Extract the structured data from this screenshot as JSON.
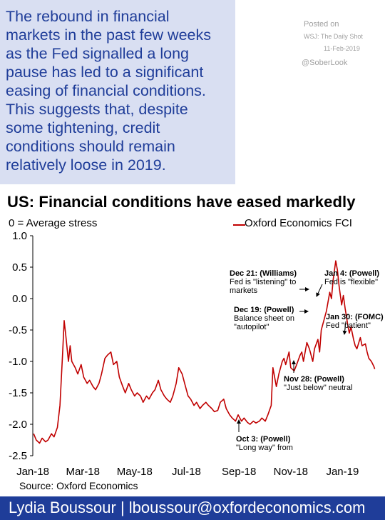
{
  "callout": {
    "lines": [
      "The rebound in financial",
      "markets in the past few weeks",
      "as the Fed signalled a long",
      "pause has led to a significant",
      "easing of financial conditions.",
      "This suggests that, despite",
      "some tightening, credit",
      "conditions should remain",
      "relatively loose in 2019."
    ]
  },
  "meta": {
    "posted": "Posted on",
    "outlet": "WSJ: The Daily Shot",
    "date": "11-Feb-2019",
    "handle": "@SoberLook"
  },
  "source": "Source: Oxford Economics",
  "author": "Lydia Boussour | lboussour@oxfordeconomics.com",
  "colors": {
    "series": "#c00000",
    "callout_bg": "#d9dff2",
    "accent": "#1f3d99"
  },
  "chart_data": {
    "type": "line",
    "title": "US: Financial conditions have eased markedly",
    "subtitle": "0 = Average stress",
    "ylim": [
      -2.5,
      1.0
    ],
    "yticks": [
      1.0,
      0.5,
      0.0,
      -0.5,
      -1.0,
      -1.5,
      -2.0,
      -2.5
    ],
    "ytick_labels": [
      "1.0",
      "0.5",
      "0.0",
      "-0.5",
      "-1.0",
      "-1.5",
      "-2.0",
      "-2.5"
    ],
    "xticks": [
      "Jan-18",
      "Mar-18",
      "May-18",
      "Jul-18",
      "Sep-18",
      "Nov-18",
      "Jan-19"
    ],
    "xtick_dates": [
      "2018-01-01",
      "2018-03-01",
      "2018-05-01",
      "2018-07-01",
      "2018-09-01",
      "2018-11-01",
      "2019-01-01"
    ],
    "xlim": [
      "2018-01-01",
      "2019-02-10"
    ],
    "grid": false,
    "legend": "top-right",
    "series": [
      {
        "name": "Oxford Economics FCI",
        "color": "#c00000",
        "points": [
          [
            "2018-01-02",
            -2.15
          ],
          [
            "2018-01-05",
            -2.25
          ],
          [
            "2018-01-09",
            -2.3
          ],
          [
            "2018-01-12",
            -2.22
          ],
          [
            "2018-01-16",
            -2.28
          ],
          [
            "2018-01-19",
            -2.25
          ],
          [
            "2018-01-23",
            -2.15
          ],
          [
            "2018-01-26",
            -2.2
          ],
          [
            "2018-01-30",
            -2.05
          ],
          [
            "2018-02-02",
            -1.7
          ],
          [
            "2018-02-05",
            -0.9
          ],
          [
            "2018-02-07",
            -0.35
          ],
          [
            "2018-02-09",
            -0.6
          ],
          [
            "2018-02-12",
            -1.0
          ],
          [
            "2018-02-14",
            -0.75
          ],
          [
            "2018-02-16",
            -1.0
          ],
          [
            "2018-02-20",
            -1.1
          ],
          [
            "2018-02-23",
            -1.2
          ],
          [
            "2018-02-27",
            -1.05
          ],
          [
            "2018-03-02",
            -1.25
          ],
          [
            "2018-03-06",
            -1.35
          ],
          [
            "2018-03-09",
            -1.3
          ],
          [
            "2018-03-13",
            -1.4
          ],
          [
            "2018-03-16",
            -1.45
          ],
          [
            "2018-03-20",
            -1.35
          ],
          [
            "2018-03-23",
            -1.2
          ],
          [
            "2018-03-27",
            -0.95
          ],
          [
            "2018-03-30",
            -0.9
          ],
          [
            "2018-04-03",
            -0.85
          ],
          [
            "2018-04-06",
            -1.05
          ],
          [
            "2018-04-10",
            -1.0
          ],
          [
            "2018-04-13",
            -1.25
          ],
          [
            "2018-04-17",
            -1.4
          ],
          [
            "2018-04-20",
            -1.5
          ],
          [
            "2018-04-24",
            -1.35
          ],
          [
            "2018-04-27",
            -1.45
          ],
          [
            "2018-05-01",
            -1.55
          ],
          [
            "2018-05-04",
            -1.5
          ],
          [
            "2018-05-08",
            -1.55
          ],
          [
            "2018-05-11",
            -1.65
          ],
          [
            "2018-05-15",
            -1.55
          ],
          [
            "2018-05-18",
            -1.6
          ],
          [
            "2018-05-22",
            -1.5
          ],
          [
            "2018-05-25",
            -1.45
          ],
          [
            "2018-05-29",
            -1.3
          ],
          [
            "2018-06-01",
            -1.45
          ],
          [
            "2018-06-05",
            -1.55
          ],
          [
            "2018-06-08",
            -1.6
          ],
          [
            "2018-06-12",
            -1.65
          ],
          [
            "2018-06-15",
            -1.55
          ],
          [
            "2018-06-19",
            -1.35
          ],
          [
            "2018-06-22",
            -1.1
          ],
          [
            "2018-06-26",
            -1.2
          ],
          [
            "2018-06-29",
            -1.35
          ],
          [
            "2018-07-03",
            -1.55
          ],
          [
            "2018-07-06",
            -1.6
          ],
          [
            "2018-07-10",
            -1.7
          ],
          [
            "2018-07-13",
            -1.65
          ],
          [
            "2018-07-17",
            -1.75
          ],
          [
            "2018-07-20",
            -1.7
          ],
          [
            "2018-07-24",
            -1.65
          ],
          [
            "2018-07-27",
            -1.7
          ],
          [
            "2018-07-31",
            -1.75
          ],
          [
            "2018-08-03",
            -1.8
          ],
          [
            "2018-08-07",
            -1.78
          ],
          [
            "2018-08-10",
            -1.65
          ],
          [
            "2018-08-14",
            -1.6
          ],
          [
            "2018-08-17",
            -1.75
          ],
          [
            "2018-08-21",
            -1.85
          ],
          [
            "2018-08-24",
            -1.9
          ],
          [
            "2018-08-28",
            -1.95
          ],
          [
            "2018-08-31",
            -1.85
          ],
          [
            "2018-09-04",
            -1.95
          ],
          [
            "2018-09-07",
            -1.9
          ],
          [
            "2018-09-11",
            -1.97
          ],
          [
            "2018-09-14",
            -2.0
          ],
          [
            "2018-09-18",
            -1.95
          ],
          [
            "2018-09-21",
            -1.98
          ],
          [
            "2018-09-25",
            -1.95
          ],
          [
            "2018-09-28",
            -1.9
          ],
          [
            "2018-10-02",
            -1.95
          ],
          [
            "2018-10-05",
            -1.85
          ],
          [
            "2018-10-09",
            -1.7
          ],
          [
            "2018-10-11",
            -1.1
          ],
          [
            "2018-10-15",
            -1.4
          ],
          [
            "2018-10-18",
            -1.2
          ],
          [
            "2018-10-22",
            -1.0
          ],
          [
            "2018-10-24",
            -0.95
          ],
          [
            "2018-10-26",
            -1.05
          ],
          [
            "2018-10-30",
            -0.85
          ],
          [
            "2018-11-01",
            -1.1
          ],
          [
            "2018-11-05",
            -1.15
          ],
          [
            "2018-11-08",
            -1.05
          ],
          [
            "2018-11-12",
            -0.9
          ],
          [
            "2018-11-14",
            -0.85
          ],
          [
            "2018-11-16",
            -1.0
          ],
          [
            "2018-11-20",
            -0.7
          ],
          [
            "2018-11-23",
            -0.8
          ],
          [
            "2018-11-27",
            -1.0
          ],
          [
            "2018-11-29",
            -0.8
          ],
          [
            "2018-12-03",
            -0.65
          ],
          [
            "2018-12-05",
            -0.85
          ],
          [
            "2018-12-07",
            -0.5
          ],
          [
            "2018-12-10",
            -0.35
          ],
          [
            "2018-12-13",
            -0.2
          ],
          [
            "2018-12-17",
            0.1
          ],
          [
            "2018-12-19",
            0.0
          ],
          [
            "2018-12-21",
            0.3
          ],
          [
            "2018-12-24",
            0.6
          ],
          [
            "2018-12-26",
            0.45
          ],
          [
            "2018-12-28",
            0.2
          ],
          [
            "2018-12-31",
            -0.1
          ],
          [
            "2019-01-02",
            0.05
          ],
          [
            "2019-01-04",
            -0.15
          ],
          [
            "2019-01-07",
            -0.4
          ],
          [
            "2019-01-09",
            -0.55
          ],
          [
            "2019-01-11",
            -0.45
          ],
          [
            "2019-01-14",
            -0.65
          ],
          [
            "2019-01-16",
            -0.75
          ],
          [
            "2019-01-18",
            -0.8
          ],
          [
            "2019-01-22",
            -0.62
          ],
          [
            "2019-01-24",
            -0.75
          ],
          [
            "2019-01-28",
            -0.72
          ],
          [
            "2019-01-30",
            -0.85
          ],
          [
            "2019-02-01",
            -0.95
          ],
          [
            "2019-02-04",
            -1.0
          ],
          [
            "2019-02-07",
            -1.08
          ],
          [
            "2019-02-08",
            -1.12
          ]
        ]
      }
    ],
    "annotations": [
      {
        "title": "Dec 21: (Williams)",
        "lines": [
          "Fed is \"listening\" to",
          "markets"
        ],
        "date": "2018-12-21",
        "value": 0.3
      },
      {
        "title": "Jan 4: (Powell)",
        "lines": [
          "Fed is \"flexible\""
        ],
        "date": "2019-01-04",
        "value": -0.15
      },
      {
        "title": "Dec 19: (Powell)",
        "lines": [
          "Balance sheet on",
          "\"autopilot\""
        ],
        "date": "2018-12-19",
        "value": 0.0
      },
      {
        "title": "Jan 30: (FOMC)",
        "lines": [
          "Fed \"patient\""
        ],
        "date": "2019-01-30",
        "value": -0.85
      },
      {
        "title": "Nov 28: (Powell)",
        "lines": [
          "\"Just below\" neutral"
        ],
        "date": "2018-11-28",
        "value": -0.8
      },
      {
        "title": "Oct 3: (Powell)",
        "lines": [
          "\"Long way\" from"
        ],
        "date": "2018-10-03",
        "value": -1.95
      }
    ]
  }
}
